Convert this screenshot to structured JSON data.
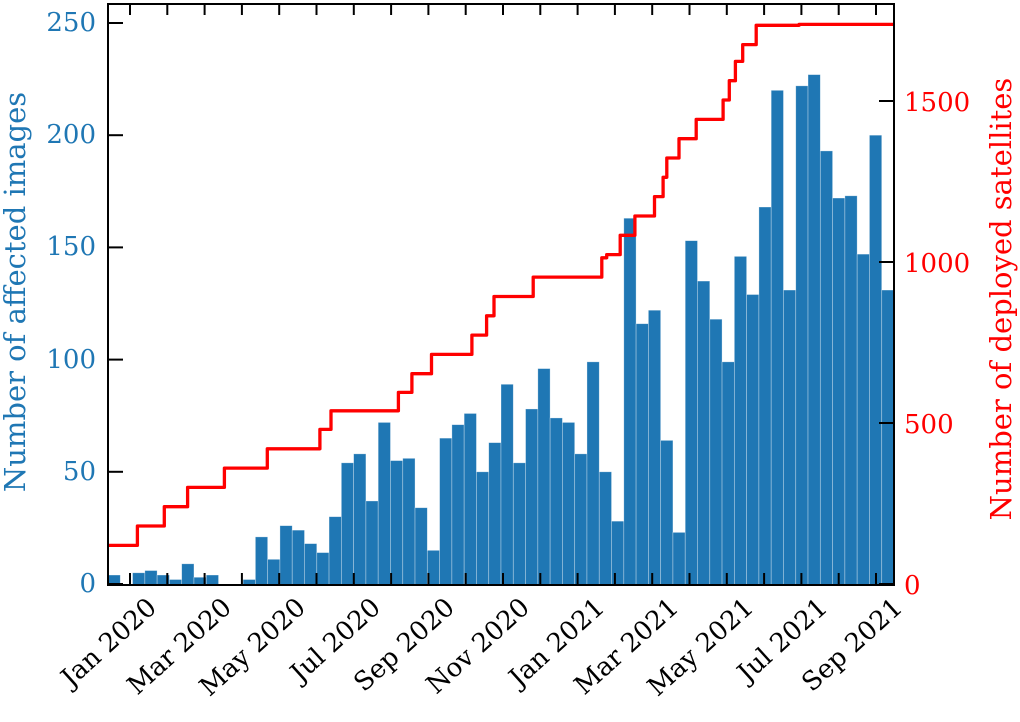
{
  "figure": {
    "left_axis_title": "Number of affected images",
    "right_axis_title": "Number of deployed satellites"
  },
  "chart_data": {
    "type": "bar",
    "title": "",
    "legend": "none",
    "grid": "off",
    "background": "#ffffff",
    "x_axis": {
      "kind": "time",
      "range_start": "2019-12-15",
      "range_end": "2021-09-15",
      "minor_tick_interval": "1 month",
      "labeled_tick_interval": "2 months",
      "label_rotation_deg": 42,
      "tick_labels": [
        "Jan 2020",
        "Mar 2020",
        "May 2020",
        "Jul 2020",
        "Sep 2020",
        "Nov 2020",
        "Jan 2021",
        "Mar 2021",
        "May 2021",
        "Jul 2021",
        "Sep 2021"
      ]
    },
    "y_left": {
      "label": "Number of affected images",
      "color": "#1f77b4",
      "ticks": [
        0,
        50,
        100,
        150,
        200,
        250
      ],
      "lim": [
        0,
        259
      ]
    },
    "y_right": {
      "label": "Number of deployed satellites",
      "color": "#ff0000",
      "ticks": [
        0,
        500,
        1000,
        1500
      ],
      "lim": [
        0,
        1802
      ]
    },
    "affected_images": {
      "name": "Number of affected images",
      "series_type": "histogram",
      "color": "#1f77b4",
      "axis": "left",
      "bin_start": "2019-12-15",
      "bin_end": "2021-09-12",
      "bin_days": 10,
      "values": [
        4,
        0,
        5,
        6,
        4,
        2,
        9,
        3,
        4,
        0,
        0,
        2,
        21,
        11,
        26,
        24,
        18,
        14,
        30,
        54,
        58,
        37,
        72,
        55,
        56,
        34,
        15,
        65,
        71,
        76,
        50,
        63,
        89,
        54,
        78,
        96,
        74,
        72,
        58,
        99,
        50,
        28,
        163,
        116,
        122,
        64,
        23,
        153,
        135,
        118,
        99,
        146,
        129,
        168,
        220,
        131,
        222,
        227,
        193,
        172,
        173,
        147,
        200,
        131
      ]
    },
    "deployed_satellites": {
      "name": "Number of deployed satellites",
      "series_type": "step-line",
      "color": "#ff0000",
      "axis": "right",
      "steps": [
        [
          "2019-12-15",
          120
        ],
        [
          "2020-01-07",
          180
        ],
        [
          "2020-01-29",
          240
        ],
        [
          "2020-02-17",
          300
        ],
        [
          "2020-03-18",
          360
        ],
        [
          "2020-04-22",
          420
        ],
        [
          "2020-06-04",
          480
        ],
        [
          "2020-06-13",
          538
        ],
        [
          "2020-08-07",
          595
        ],
        [
          "2020-08-18",
          653
        ],
        [
          "2020-09-03",
          713
        ],
        [
          "2020-10-06",
          773
        ],
        [
          "2020-10-18",
          833
        ],
        [
          "2020-10-24",
          893
        ],
        [
          "2020-11-25",
          953
        ],
        [
          "2021-01-20",
          1013
        ],
        [
          "2021-01-24",
          1023
        ],
        [
          "2021-02-04",
          1083
        ],
        [
          "2021-02-16",
          1143
        ],
        [
          "2021-03-04",
          1203
        ],
        [
          "2021-03-11",
          1263
        ],
        [
          "2021-03-14",
          1323
        ],
        [
          "2021-03-24",
          1383
        ],
        [
          "2021-04-07",
          1443
        ],
        [
          "2021-04-29",
          1503
        ],
        [
          "2021-05-04",
          1563
        ],
        [
          "2021-05-09",
          1623
        ],
        [
          "2021-05-15",
          1675
        ],
        [
          "2021-05-26",
          1735
        ],
        [
          "2021-06-30",
          1738
        ],
        [
          "2021-09-12",
          1738
        ]
      ]
    }
  }
}
